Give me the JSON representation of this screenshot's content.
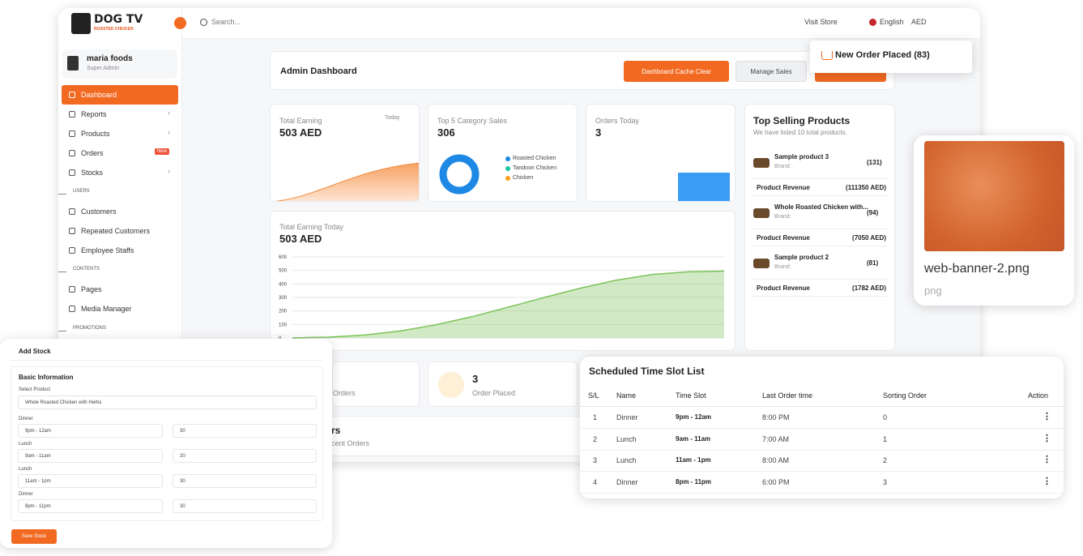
{
  "sidebar": {
    "brand": "DOG TV",
    "brand_sub": "ROASTED CHICKEN",
    "user_name": "maria foods",
    "user_role": "Super Admin",
    "menu": [
      {
        "label": "Dashboard",
        "kind": "active"
      },
      {
        "label": "Reports",
        "kind": "arrow"
      },
      {
        "label": "Products",
        "kind": "arrow"
      },
      {
        "label": "Orders",
        "badge": "New"
      },
      {
        "label": "Stocks",
        "kind": "arrow"
      },
      {
        "label": "USERS",
        "kind": "section"
      },
      {
        "label": "Customers"
      },
      {
        "label": "Repeated Customers"
      },
      {
        "label": "Employee Staffs"
      },
      {
        "label": "CONTENTS",
        "kind": "section"
      },
      {
        "label": "Pages"
      },
      {
        "label": "Media Manager"
      },
      {
        "label": "PROMOTIONS",
        "kind": "section"
      }
    ]
  },
  "topbar": {
    "search": "Search...",
    "visit": "Visit Store",
    "language": "English",
    "currency": "AED"
  },
  "header": {
    "title": "Admin Dashboard",
    "cache_button": "Dashboard Cache Clear",
    "sales_button": "Manage Sales"
  },
  "toast": "New Order Placed (83)",
  "cards": {
    "earning": {
      "label": "Total Earning",
      "filter": "Today",
      "value": "503 AED"
    },
    "category": {
      "label": "Top 5 Category Sales",
      "value": "306",
      "legend": [
        {
          "name": "Roasted Chicken",
          "color": "#1e88e5"
        },
        {
          "name": "Tandoori Chicken",
          "color": "#1bc5a0"
        },
        {
          "name": "Chicken",
          "color": "#ff9f1a"
        }
      ]
    },
    "orders_today": {
      "label": "Orders Today",
      "value": "3"
    }
  },
  "earning_today": {
    "label": "Total Earning Today",
    "value": "503 AED",
    "yticks": [
      0,
      100,
      200,
      300,
      400,
      500,
      600
    ],
    "ylim": [
      0,
      600
    ],
    "color": "#7cc35a",
    "values": [
      0,
      6,
      22,
      52,
      98,
      158,
      228,
      300,
      368,
      428,
      470,
      490,
      495
    ]
  },
  "top_selling": {
    "title": "Top Selling Products",
    "subtitle": "We have listed 10 total products.",
    "products": [
      {
        "name": "Sample product 3",
        "brand": "Brand:",
        "count": "(131)",
        "revenue_label": "Product Revenue",
        "revenue": "(111350 AED)"
      },
      {
        "name": "Whole Roasted Chicken with...",
        "brand": "Brand:",
        "count": "(94)",
        "revenue_label": "Product Revenue",
        "revenue": "(7050 AED)"
      },
      {
        "name": "Sample product 2",
        "brand": "Brand:",
        "count": "(81)",
        "revenue_label": "Product Revenue",
        "revenue": "(1782 AED)"
      }
    ]
  },
  "image_card": {
    "filename": "web-banner-2.png",
    "ext": "png"
  },
  "bottom": {
    "pending": "Orders",
    "placed_value": "3",
    "placed_label": "Order Placed",
    "recent_title": "rs",
    "recent_sub": "cent Orders"
  },
  "add_stock": {
    "title": "Add Stock",
    "section": "Basic Information",
    "select_label": "Select Product",
    "select_value": "Whole Roasted Chicken with Herbs",
    "rows": [
      {
        "label": "Dinner",
        "slot": "9pm - 12am",
        "qty": "30"
      },
      {
        "label": "Lunch",
        "slot": "9am - 11am",
        "qty": "20"
      },
      {
        "label": "Lunch",
        "slot": "11am - 1pm",
        "qty": "30"
      },
      {
        "label": "Dinner",
        "slot": "8pm - 11pm",
        "qty": "30"
      }
    ],
    "button": "Save Stock"
  },
  "schedule": {
    "title": "Scheduled Time Slot List",
    "headers": [
      "S/L",
      "Name",
      "Time Slot",
      "Last Order time",
      "Sorting Order",
      "Action"
    ],
    "rows": [
      [
        "1",
        "Dinner",
        "9pm - 12am",
        "8:00 PM",
        "0"
      ],
      [
        "2",
        "Lunch",
        "9am - 11am",
        "7:00 AM",
        "1"
      ],
      [
        "3",
        "Lunch",
        "11am - 1pm",
        "8:00 AM",
        "2"
      ],
      [
        "4",
        "Dinner",
        "8pm - 11pm",
        "6:00 PM",
        "3"
      ]
    ]
  }
}
